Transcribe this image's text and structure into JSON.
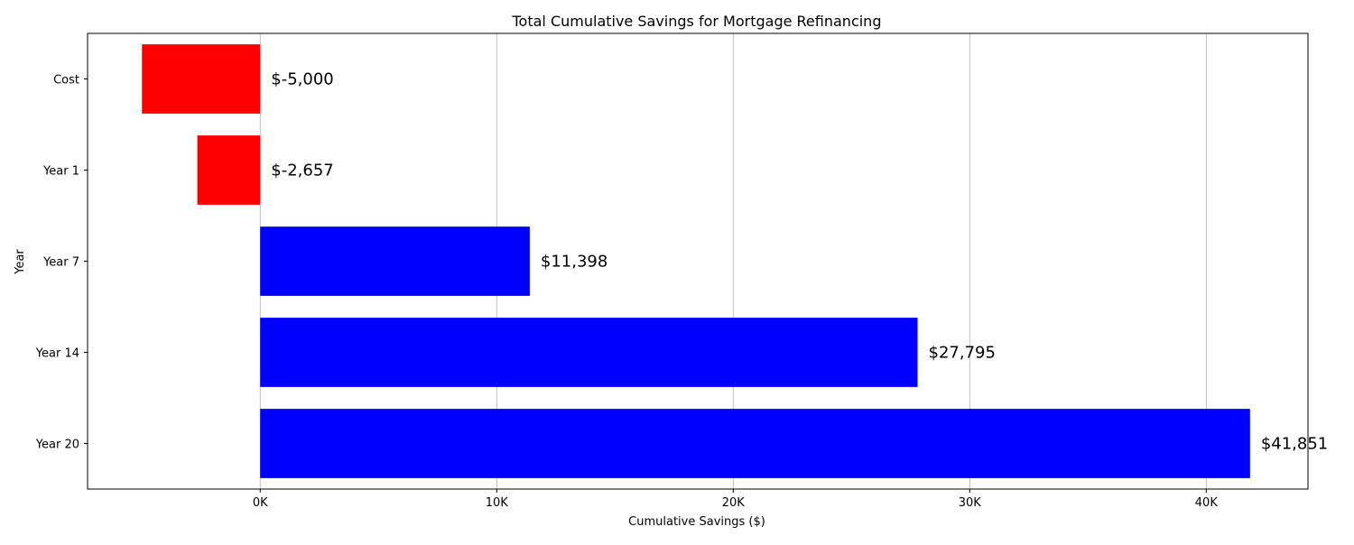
{
  "chart_data": {
    "type": "bar",
    "orientation": "horizontal",
    "title": "Total Cumulative Savings for Mortgage Refinancing",
    "xlabel": "Cumulative Savings ($)",
    "ylabel": "Year",
    "categories": [
      "Cost",
      "Year 1",
      "Year 7",
      "Year 14",
      "Year 20"
    ],
    "values": [
      -5000,
      -2657,
      11398,
      27795,
      41851
    ],
    "data_labels": [
      "$-5,000",
      "$-2,657",
      "$11,398",
      "$27,795",
      "$41,851"
    ],
    "bar_colors": [
      "#ff0000",
      "#ff0000",
      "#0000ff",
      "#0000ff",
      "#0000ff"
    ],
    "xlim": [
      -7300,
      44300
    ],
    "xticks": [
      0,
      10000,
      20000,
      30000,
      40000
    ],
    "xtick_labels": [
      "0K",
      "10K",
      "20K",
      "30K",
      "40K"
    ],
    "grid": "x-axis vertical lines",
    "legend": "none"
  }
}
